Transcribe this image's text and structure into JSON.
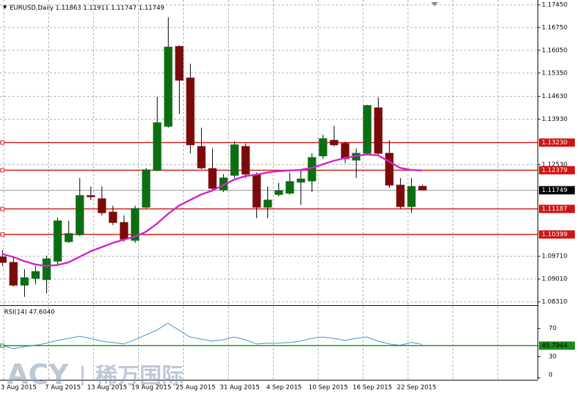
{
  "chart_data": [
    {
      "type": "candlestick",
      "title": "EURUSD,Daily",
      "categories": [
        null,
        "3 Aug 2015",
        null,
        null,
        null,
        "7 Aug 2015",
        null,
        null,
        null,
        "13 Aug 2015",
        null,
        null,
        null,
        "19 Aug 2015",
        null,
        null,
        null,
        "25 Aug 2015",
        null,
        null,
        null,
        "31 Aug 2015",
        null,
        null,
        null,
        "4 Sep 2015",
        null,
        null,
        null,
        "10 Sep 2015",
        null,
        null,
        null,
        "16 Sep 2015",
        null,
        null,
        null,
        "22 Sep 2015",
        null
      ],
      "open": [
        1.0969,
        1.0952,
        1.0882,
        1.0903,
        1.0899,
        1.0956,
        1.1016,
        1.1037,
        1.1158,
        1.1148,
        1.1107,
        1.1075,
        1.102,
        1.1122,
        1.1235,
        1.1371,
        1.1617,
        1.152,
        1.1309,
        1.1241,
        1.1175,
        1.122,
        1.1309,
        1.1222,
        1.1122,
        1.1161,
        1.1165,
        1.1199,
        1.1203,
        1.128,
        1.1328,
        1.1318,
        1.1267,
        1.1288,
        1.1428,
        1.1288,
        1.119,
        1.1124,
        1.11863
      ],
      "high": [
        1.099,
        1.0969,
        1.0931,
        1.0941,
        1.0973,
        1.109,
        1.108,
        1.1212,
        1.1186,
        1.1186,
        1.1127,
        1.1097,
        1.1127,
        1.1243,
        1.1462,
        1.1707,
        1.162,
        1.1564,
        1.1367,
        1.1303,
        1.1224,
        1.1324,
        1.1318,
        1.1229,
        1.1186,
        1.1197,
        1.1229,
        1.1239,
        1.1288,
        1.1345,
        1.1373,
        1.1324,
        1.1303,
        1.1437,
        1.146,
        1.1328,
        1.1212,
        1.1212,
        1.11911
      ],
      "low": [
        1.0941,
        1.0878,
        1.0846,
        1.0884,
        1.0856,
        1.0941,
        1.1012,
        1.1033,
        1.1144,
        1.1097,
        1.1067,
        1.1016,
        1.1012,
        1.1118,
        1.1233,
        1.1367,
        1.1409,
        1.1288,
        1.1239,
        1.1173,
        1.1169,
        1.1212,
        1.1212,
        1.1088,
        1.1088,
        1.1156,
        1.1161,
        1.1129,
        1.1169,
        1.1271,
        1.1309,
        1.1258,
        1.1212,
        1.1284,
        1.1284,
        1.1182,
        1.1118,
        1.1105,
        1.11747
      ],
      "close": [
        1.0952,
        1.0882,
        1.0905,
        1.0924,
        1.0963,
        1.108,
        1.1041,
        1.1158,
        1.1154,
        1.1105,
        1.1075,
        1.1024,
        1.1118,
        1.1237,
        1.1382,
        1.1615,
        1.1513,
        1.1314,
        1.1243,
        1.118,
        1.1212,
        1.1314,
        1.1224,
        1.1122,
        1.1144,
        1.1173,
        1.1201,
        1.1209,
        1.1275,
        1.1333,
        1.1314,
        1.1271,
        1.1288,
        1.1435,
        1.1288,
        1.119,
        1.1124,
        1.1186,
        1.11749
      ],
      "up_color": "#0b6e12",
      "down_color": "#7c0a0a",
      "ma": {
        "color": "#d423c8",
        "values": [
          1.0978,
          1.0969,
          1.0956,
          1.0946,
          1.0941,
          1.0944,
          1.0952,
          1.0969,
          1.0986,
          1.0999,
          1.1012,
          1.1022,
          1.1031,
          1.1046,
          1.1071,
          1.1101,
          1.1127,
          1.1144,
          1.1161,
          1.1173,
          1.119,
          1.1207,
          1.1218,
          1.1222,
          1.1229,
          1.1233,
          1.1235,
          1.1237,
          1.1243,
          1.1254,
          1.1265,
          1.1273,
          1.128,
          1.1284,
          1.1282,
          1.1263,
          1.1243,
          1.1237,
          1.1235
        ]
      },
      "levels": [
        {
          "value": 1.1323,
          "label": "1.13230"
        },
        1.12379,
        1.11187,
        1.10399
      ],
      "level_color": "#d01414",
      "ylim": [
        1.08245,
        1.17599
      ],
      "yticks": [
        {
          "value": 1.1745,
          "label": "1.17450"
        },
        {
          "value": 1.1675,
          "label": "1.16750"
        },
        {
          "value": 1.1605,
          "label": "1.16050"
        },
        {
          "value": 1.1535,
          "label": "1.15350"
        },
        {
          "value": 1.1463,
          "label": "1.14630"
        },
        {
          "value": 1.1393,
          "label": "1.13930"
        },
        {
          "value": 1.1253,
          "label": "1.12530"
        },
        {
          "value": 1.0971,
          "label": "1.09710"
        },
        {
          "value": 1.0901,
          "label": "1.09010"
        },
        {
          "value": 1.0831,
          "label": "1.08310"
        }
      ],
      "grid": true
    },
    {
      "type": "line",
      "title": "RSI(14) 47.6040",
      "color": "#3b8ec4",
      "values": [
        46.1,
        41.2,
        44.1,
        46.1,
        49,
        52.9,
        55.9,
        58.8,
        55.9,
        52,
        50,
        48,
        53.9,
        60.8,
        67.6,
        77.5,
        67.6,
        57.8,
        54.9,
        52,
        53.9,
        57.8,
        53.9,
        48,
        49,
        49,
        50,
        52,
        55.9,
        57.8,
        55.9,
        52.9,
        55.9,
        57.8,
        52,
        48,
        46.1,
        50,
        47.604
      ],
      "level": 45.7944,
      "level_color": "#1a8a1a",
      "ylim": [
        0,
        100
      ],
      "yticks": [
        70,
        30,
        0
      ]
    }
  ],
  "watermark": {
    "brand": "ACY",
    "name": "稀万国际"
  }
}
